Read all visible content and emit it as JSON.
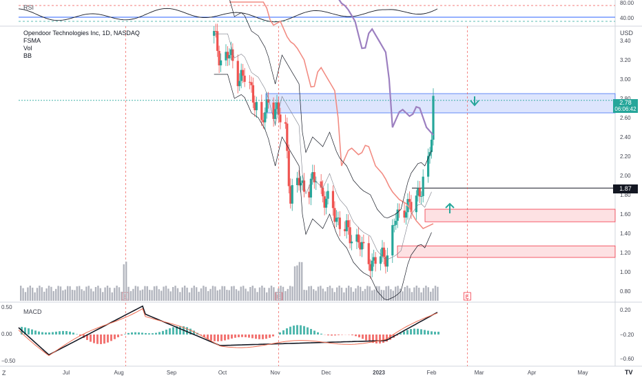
{
  "chart_data": {
    "type": "candlestick",
    "symbol": "Opendoor Technologies Inc",
    "interval": "1D",
    "exchange": "NASDAQ",
    "title": "Opendoor Technologies Inc, 1D, NASDAQ",
    "indicators": [
      "FSMA",
      "Vol",
      "BB"
    ],
    "currency": "USD",
    "last_price": "2.78",
    "countdown": "06:06:42",
    "level_label": "1.87",
    "price_axis": {
      "ylim": [
        0.7,
        3.55
      ],
      "ticks": [
        "3.40",
        "3.20",
        "3.00",
        "2.80",
        "2.60",
        "2.40",
        "2.20",
        "2.00",
        "1.80",
        "1.60",
        "1.40",
        "1.20",
        "1.00",
        "0.80"
      ]
    },
    "x_axis": {
      "ticks": [
        "Jul",
        "Aug",
        "Sep",
        "Oct",
        "Nov",
        "Dec",
        "2023",
        "Feb",
        "Mar",
        "Apr",
        "May"
      ]
    },
    "rsi": {
      "label": "RSI",
      "ticks": [
        "80.00",
        "40.00"
      ]
    },
    "macd": {
      "label": "MACD",
      "left_ticks": [
        "0.50",
        "0.00",
        "−0.50"
      ],
      "right_ticks": [
        "0.20",
        "−0.20",
        "−0.60"
      ]
    },
    "close_path": [
      [
        "2022-09-26",
        3.45
      ],
      [
        "2022-09-30",
        3.2
      ],
      [
        "2022-10-05",
        3.25
      ],
      [
        "2022-10-10",
        3.05
      ],
      [
        "2022-10-14",
        3.0
      ],
      [
        "2022-10-19",
        2.85
      ],
      [
        "2022-10-24",
        2.5
      ],
      [
        "2022-10-28",
        2.8
      ],
      [
        "2022-11-02",
        2.65
      ],
      [
        "2022-11-07",
        2.5
      ],
      [
        "2022-11-10",
        1.75
      ],
      [
        "2022-11-15",
        1.95
      ],
      [
        "2022-11-21",
        1.85
      ],
      [
        "2022-11-25",
        2.0
      ],
      [
        "2022-11-30",
        1.75
      ],
      [
        "2022-12-05",
        1.65
      ],
      [
        "2022-12-09",
        1.5
      ],
      [
        "2022-12-14",
        1.4
      ],
      [
        "2022-12-19",
        1.35
      ],
      [
        "2022-12-23",
        1.2
      ],
      [
        "2022-12-28",
        1.1
      ],
      [
        "2023-01-03",
        1.15
      ],
      [
        "2023-01-06",
        1.2
      ],
      [
        "2023-01-11",
        1.55
      ],
      [
        "2023-01-17",
        1.7
      ],
      [
        "2023-01-20",
        1.65
      ],
      [
        "2023-01-25",
        1.85
      ],
      [
        "2023-01-30",
        2.1
      ],
      [
        "2023-02-01",
        2.4
      ],
      [
        "2023-02-02",
        2.78
      ]
    ],
    "events": [
      "E",
      "E",
      "E"
    ]
  },
  "chart_labels": {
    "z_button": "Z",
    "tv_logo": "TV"
  }
}
